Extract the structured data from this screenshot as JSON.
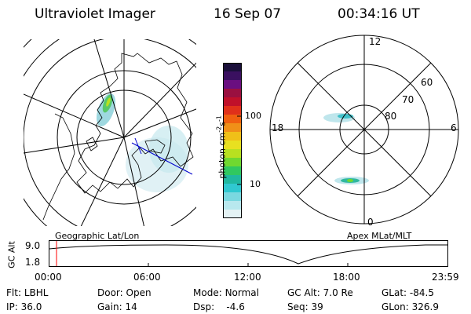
{
  "header": {
    "title": "Ultraviolet Imager",
    "date": "16 Sep 07",
    "time": "00:34:16 UT"
  },
  "left_panel": {
    "caption": "Geographic Lat/Lon"
  },
  "right_panel": {
    "caption": "Apex MLat/MLT",
    "mlt_labels": {
      "top": "12",
      "bottom": "0",
      "left": "18",
      "right": "6"
    },
    "lat_labels": [
      "60",
      "70",
      "80"
    ]
  },
  "colorbar": {
    "unit_label": "photon cm",
    "unit_exp1": "-2",
    "unit_s": "s",
    "unit_exp2": "-1",
    "ticks": [
      "100",
      "10"
    ],
    "colors": [
      "#1a0f3a",
      "#3a1060",
      "#6a0f80",
      "#9a1040",
      "#c0102a",
      "#e0301a",
      "#f06010",
      "#f09018",
      "#f0c018",
      "#e8e020",
      "#b8e020",
      "#70d830",
      "#30c860",
      "#20b8a0",
      "#30c8d0",
      "#7ad8e0",
      "#b8e8ee",
      "#e4f2f4"
    ]
  },
  "altitude_strip": {
    "axis_label": "GC Alt",
    "y_ticks": [
      "9.0",
      "1.8"
    ],
    "x_ticks": [
      "00:00",
      "06:00",
      "12:00",
      "18:00",
      "23:59"
    ],
    "current_marker_color": "#ff0000"
  },
  "footer": {
    "row1": [
      {
        "label": "Flt:",
        "value": "LBHL"
      },
      {
        "label": "Door:",
        "value": "Open"
      },
      {
        "label": "Mode:",
        "value": "Normal"
      },
      {
        "label": "GC Alt:",
        "value": "7.0 Re"
      },
      {
        "label": "GLat:",
        "value": "-84.5"
      }
    ],
    "row2": [
      {
        "label": "IP:",
        "value": "36.0"
      },
      {
        "label": "Gain:",
        "value": "14"
      },
      {
        "label": "Dsp:",
        "value": "-4.6"
      },
      {
        "label": "Seq:",
        "value": "39"
      },
      {
        "label": "GLon:",
        "value": "326.9"
      }
    ]
  }
}
